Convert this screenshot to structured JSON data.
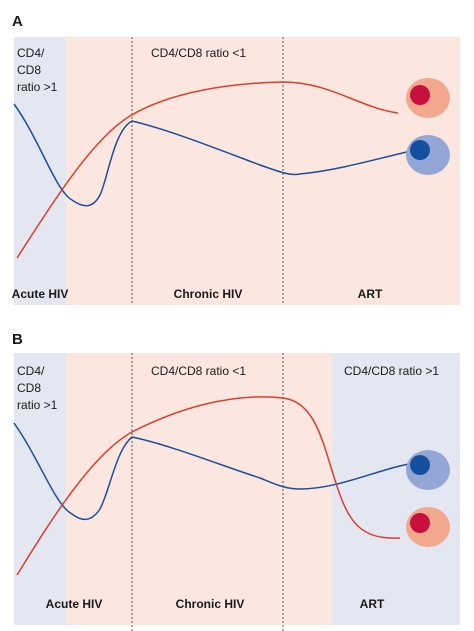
{
  "colors": {
    "acute_bg": "#e4e6f2",
    "chronic_bg": "#fbe7df",
    "art_bg_a": "#fbe7df",
    "art_bg_b": "#e4e6f2",
    "cd4_line": "#d8402f",
    "cd8_line": "#1d4e98",
    "cd4_cell_outer": "#f2a88c",
    "cd4_cell_inner": "#c8103c",
    "cd8_cell_outer": "#93a6d6",
    "cd8_cell_inner": "#1550a0",
    "divider": "#555555"
  },
  "panels": [
    {
      "letter": "A",
      "ratio_left": [
        "CD4/",
        "CD8",
        "ratio >1"
      ],
      "ratio_middle": "CD4/CD8 ratio <1",
      "ratio_right": "",
      "phases": [
        "Acute HIV",
        "Chronic HIV",
        "ART"
      ]
    },
    {
      "letter": "B",
      "ratio_left": [
        "CD4/",
        "CD8",
        "ratio >1"
      ],
      "ratio_middle": "CD4/CD8 ratio <1",
      "ratio_right": "CD4/CD8 ratio >1",
      "phases": [
        "Acute HIV",
        "Chronic HIV",
        "ART"
      ]
    }
  ]
}
